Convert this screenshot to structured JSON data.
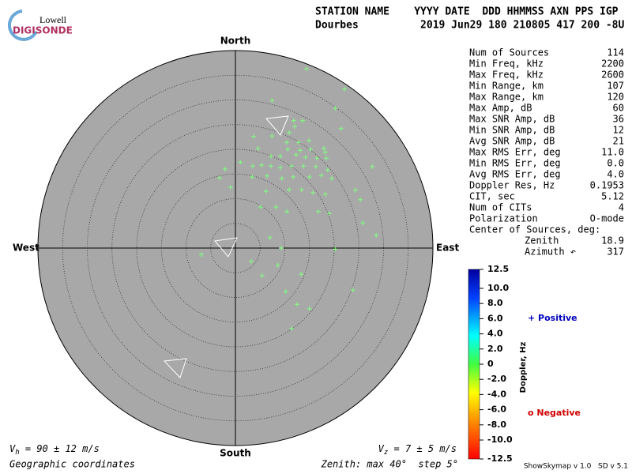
{
  "logo": {
    "top": "Lowell",
    "bottom": "DIGISONDE"
  },
  "header": {
    "line1": "STATION NAME    YYYY DATE  DDD HHMMSS AXN PPS IGP",
    "line2": "Dourbes          2019 Jun29 180 210805 417 200 -8U"
  },
  "stats": [
    [
      "Num of Sources",
      "114"
    ],
    [
      "Min Freq, kHz",
      "2200"
    ],
    [
      "Max Freq, kHz",
      "2600"
    ],
    [
      "Min Range, km",
      "107"
    ],
    [
      "Max Range, km",
      "120"
    ],
    [
      "Max Amp, dB",
      "60"
    ],
    [
      "Max SNR Amp, dB",
      "36"
    ],
    [
      "Min SNR Amp, dB",
      "12"
    ],
    [
      "Avg SNR Amp, dB",
      "21"
    ],
    [
      "Max RMS Err, deg",
      "11.0"
    ],
    [
      "Min RMS Err, deg",
      "0.0"
    ],
    [
      "Avg RMS Err, deg",
      "4.0"
    ],
    [
      "Doppler Res, Hz",
      "0.1953"
    ],
    [
      "CIT, sec",
      "5.12"
    ],
    [
      "Num of CITs",
      "4"
    ],
    [
      "Polarization",
      "O-mode"
    ],
    [
      "Center of Sources, deg:",
      ""
    ],
    [
      "Zenith",
      "18.9"
    ],
    [
      "Azimuth ↶",
      "317"
    ]
  ],
  "footer": {
    "vh_symbol": "V",
    "vh_sub": "h",
    "vh_text": " = 90 ± 12 m/s",
    "vz_symbol": "V",
    "vz_sub": "z",
    "vz_text": " = 7 ± 5 m/s",
    "coords": "Geographic coordinates",
    "zenith": "Zenith: max 40°  step 5°",
    "version": "ShowSkymap v 1.0   SD v 5.1"
  },
  "colorbar": {
    "label": "Doppler, Hz",
    "positive": "+ Positive",
    "negative": "o Negative",
    "lim": [
      -12.5,
      12.5
    ],
    "ticks": [
      12.5,
      {
        "value": 10,
        "label": "10.0"
      },
      {
        "value": 8,
        "label": "8.0"
      },
      {
        "value": 6,
        "label": "6.0"
      },
      {
        "value": 4,
        "label": "4.0"
      },
      {
        "value": 2,
        "label": "2.0"
      },
      0,
      {
        "value": -2,
        "label": "-2.0"
      },
      {
        "value": -4,
        "label": "-4.0"
      },
      {
        "value": -6,
        "label": "-6.0"
      },
      {
        "value": -8,
        "label": "-8.0"
      },
      {
        "value": -10,
        "label": "-10.0"
      },
      -12.5
    ]
  },
  "chart_data": {
    "type": "skymap",
    "directions": {
      "north": "North",
      "south": "South",
      "east": "East",
      "west": "West"
    },
    "xlim": [
      -40,
      40
    ],
    "ylim": [
      -40,
      40
    ],
    "rings": [
      5,
      10,
      15,
      20,
      25,
      30,
      35
    ],
    "series": [
      {
        "color": "#80ff80",
        "x": [
          14.4,
          22.1,
          7.4,
          20.2,
          11.8,
          13.6,
          12.0,
          10.9,
          21.4,
          3.7,
          7.4,
          10.4,
          12.8,
          14.9,
          4.6,
          10.6,
          13.1,
          15.2,
          17.9,
          18.2,
          7.2,
          9.1,
          12.3,
          14.2,
          16.5,
          18.4,
          1.0,
          3.5,
          5.3,
          7.2,
          9.1,
          11.4,
          13.8,
          16.3,
          18.7,
          -2.1,
          -3.2,
          3.4,
          6.4,
          9.4,
          11.7,
          15.0,
          17.4,
          19.5,
          27.7,
          -1.0,
          6.2,
          10.9,
          13.4,
          15.7,
          18.2,
          24.3,
          25.3,
          5.1,
          8.2,
          10.4,
          16.8,
          19.0,
          25.8,
          28.5,
          7.0,
          9.3,
          20.2,
          -6.9,
          3.2,
          8.6,
          13.3,
          5.4,
          10.2,
          23.8,
          12.5,
          15.0,
          11.4
        ],
        "y": [
          36.3,
          32.2,
          29.9,
          28.3,
          25.8,
          25.8,
          24.6,
          23.4,
          24.2,
          22.6,
          22.7,
          21.4,
          21.4,
          21.8,
          20.2,
          20.0,
          19.8,
          20.0,
          20.2,
          19.4,
          18.6,
          18.6,
          18.9,
          18.4,
          18.2,
          18.2,
          17.4,
          16.6,
          16.8,
          16.6,
          16.3,
          16.6,
          16.6,
          16.5,
          15.8,
          16.0,
          14.2,
          14.4,
          14.6,
          14.1,
          14.4,
          14.4,
          14.7,
          14.1,
          16.5,
          12.3,
          11.5,
          11.8,
          11.8,
          11.2,
          10.9,
          11.7,
          9.8,
          8.3,
          8.3,
          7.4,
          7.4,
          7.0,
          5.1,
          2.6,
          2.1,
          0,
          -0.2,
          -1.3,
          -2.7,
          -3.5,
          -5.3,
          -5.6,
          -8.8,
          -8.5,
          -11.4,
          -12.3,
          -16.3
        ]
      }
    ]
  }
}
